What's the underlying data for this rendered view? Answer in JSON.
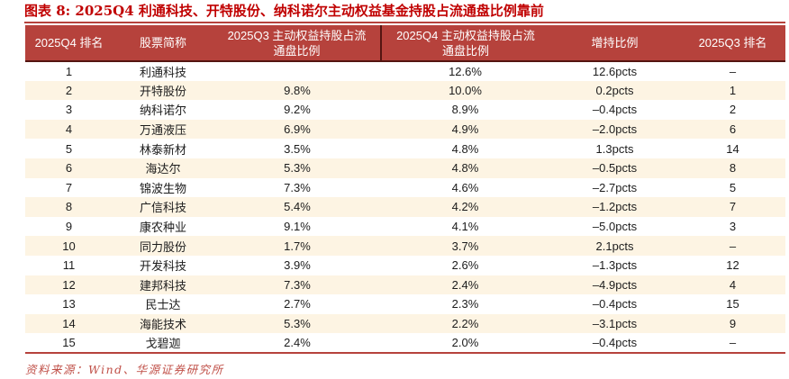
{
  "title": "图表 8: 2025Q4 利通科技、开特股份、纳科诺尔主动权益基金持股占流通盘比例靠前",
  "source_note": "资料来源：Wind、华源证券研究所",
  "colors": {
    "title_red": "#c00000",
    "header_bg": "#b6423c",
    "header_text": "#ffffff",
    "stripe_bg": "#fdf4e3",
    "divider_dark": "#541511",
    "table_border_red": "#b6423c",
    "source_red": "#c05048",
    "cell_text": "#1c1c1c"
  },
  "chart_data": {
    "type": "table",
    "title": "2025Q4 利通科技、开特股份、纳科诺尔主动权益基金持股占流通盘比例靠前",
    "columns": [
      "2025Q4 排名",
      "股票简称",
      "2025Q3 主动权益持股占流通盘比例",
      "2025Q4 主动权益持股占流通盘比例",
      "增持比例",
      "2025Q3 排名"
    ],
    "header_lines": [
      "2025Q4 排名",
      "股票简称",
      "2025Q3 主动权益持股占流\n通盘比例",
      "2025Q4 主动权益持股占流\n通盘比例",
      "增持比例",
      "2025Q3 排名"
    ],
    "rows": [
      [
        "1",
        "利通科技",
        "",
        "12.6%",
        "12.6pcts",
        "–"
      ],
      [
        "2",
        "开特股份",
        "9.8%",
        "10.0%",
        "0.2pcts",
        "1"
      ],
      [
        "3",
        "纳科诺尔",
        "9.2%",
        "8.9%",
        "–0.4pcts",
        "2"
      ],
      [
        "4",
        "万通液压",
        "6.9%",
        "4.9%",
        "–2.0pcts",
        "6"
      ],
      [
        "5",
        "林泰新材",
        "3.5%",
        "4.8%",
        "1.3pcts",
        "14"
      ],
      [
        "6",
        "海达尔",
        "5.3%",
        "4.8%",
        "–0.5pcts",
        "8"
      ],
      [
        "7",
        "锦波生物",
        "7.3%",
        "4.6%",
        "–2.7pcts",
        "5"
      ],
      [
        "8",
        "广信科技",
        "5.4%",
        "4.2%",
        "–1.2pcts",
        "7"
      ],
      [
        "9",
        "康农种业",
        "9.1%",
        "4.1%",
        "–5.0pcts",
        "3"
      ],
      [
        "10",
        "同力股份",
        "1.7%",
        "3.7%",
        "2.1pcts",
        "–"
      ],
      [
        "11",
        "开发科技",
        "3.9%",
        "2.6%",
        "–1.3pcts",
        "12"
      ],
      [
        "12",
        "建邦科技",
        "7.3%",
        "2.4%",
        "–4.9pcts",
        "4"
      ],
      [
        "13",
        "民士达",
        "2.7%",
        "2.3%",
        "–0.4pcts",
        "15"
      ],
      [
        "14",
        "海能技术",
        "5.3%",
        "2.2%",
        "–3.1pcts",
        "9"
      ],
      [
        "15",
        "戈碧迦",
        "2.4%",
        "2.0%",
        "–0.4pcts",
        "–"
      ]
    ]
  }
}
